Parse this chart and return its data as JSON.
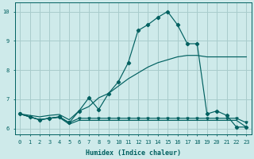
{
  "xlabel": "Humidex (Indice chaleur)",
  "xlim": [
    -0.5,
    23.5
  ],
  "ylim": [
    5.8,
    10.3
  ],
  "xticks": [
    0,
    1,
    2,
    3,
    4,
    5,
    6,
    7,
    8,
    9,
    10,
    11,
    12,
    13,
    14,
    15,
    16,
    17,
    18,
    19,
    20,
    21,
    22,
    23
  ],
  "yticks": [
    6,
    7,
    8,
    9,
    10
  ],
  "bg_color": "#ceeaea",
  "grid_color": "#a8cccc",
  "line_color": "#006060",
  "s_hump_x": [
    0,
    1,
    2,
    3,
    4,
    5,
    6,
    7,
    8,
    9,
    10,
    11,
    12,
    13,
    14,
    15,
    16,
    17,
    18,
    19,
    20,
    21,
    22,
    23
  ],
  "s_hump_y": [
    6.5,
    6.4,
    6.3,
    6.35,
    6.4,
    6.2,
    6.6,
    7.05,
    6.65,
    7.2,
    7.6,
    8.25,
    9.35,
    9.55,
    9.8,
    10.0,
    9.55,
    8.9,
    8.9,
    6.5,
    6.6,
    6.45,
    6.05,
    6.05
  ],
  "s_diag_x": [
    0,
    1,
    2,
    3,
    4,
    5,
    6,
    7,
    8,
    9,
    10,
    11,
    12,
    13,
    14,
    15,
    16,
    17,
    18,
    19,
    20,
    21,
    22,
    23
  ],
  "s_diag_y": [
    6.5,
    6.45,
    6.4,
    6.45,
    6.48,
    6.3,
    6.6,
    6.75,
    7.05,
    7.2,
    7.45,
    7.7,
    7.9,
    8.1,
    8.25,
    8.35,
    8.45,
    8.5,
    8.5,
    8.45,
    8.45,
    8.45,
    8.45,
    8.45
  ],
  "s_flat1_x": [
    0,
    1,
    2,
    3,
    4,
    5,
    6,
    7,
    8,
    9,
    10,
    11,
    12,
    13,
    14,
    15,
    16,
    17,
    18,
    19,
    20,
    21,
    22,
    23
  ],
  "s_flat1_y": [
    6.5,
    6.4,
    6.3,
    6.35,
    6.4,
    6.2,
    6.35,
    6.35,
    6.35,
    6.35,
    6.35,
    6.35,
    6.35,
    6.35,
    6.35,
    6.35,
    6.35,
    6.35,
    6.35,
    6.35,
    6.35,
    6.35,
    6.35,
    6.2
  ],
  "s_flat2_x": [
    0,
    1,
    2,
    3,
    4,
    5,
    6,
    7,
    8,
    9,
    10,
    11,
    12,
    13,
    14,
    15,
    16,
    17,
    18,
    19,
    20,
    21,
    22,
    23
  ],
  "s_flat2_y": [
    6.5,
    6.4,
    6.3,
    6.35,
    6.38,
    6.15,
    6.28,
    6.28,
    6.28,
    6.28,
    6.28,
    6.28,
    6.28,
    6.28,
    6.28,
    6.28,
    6.28,
    6.28,
    6.28,
    6.28,
    6.28,
    6.28,
    6.28,
    6.05
  ]
}
